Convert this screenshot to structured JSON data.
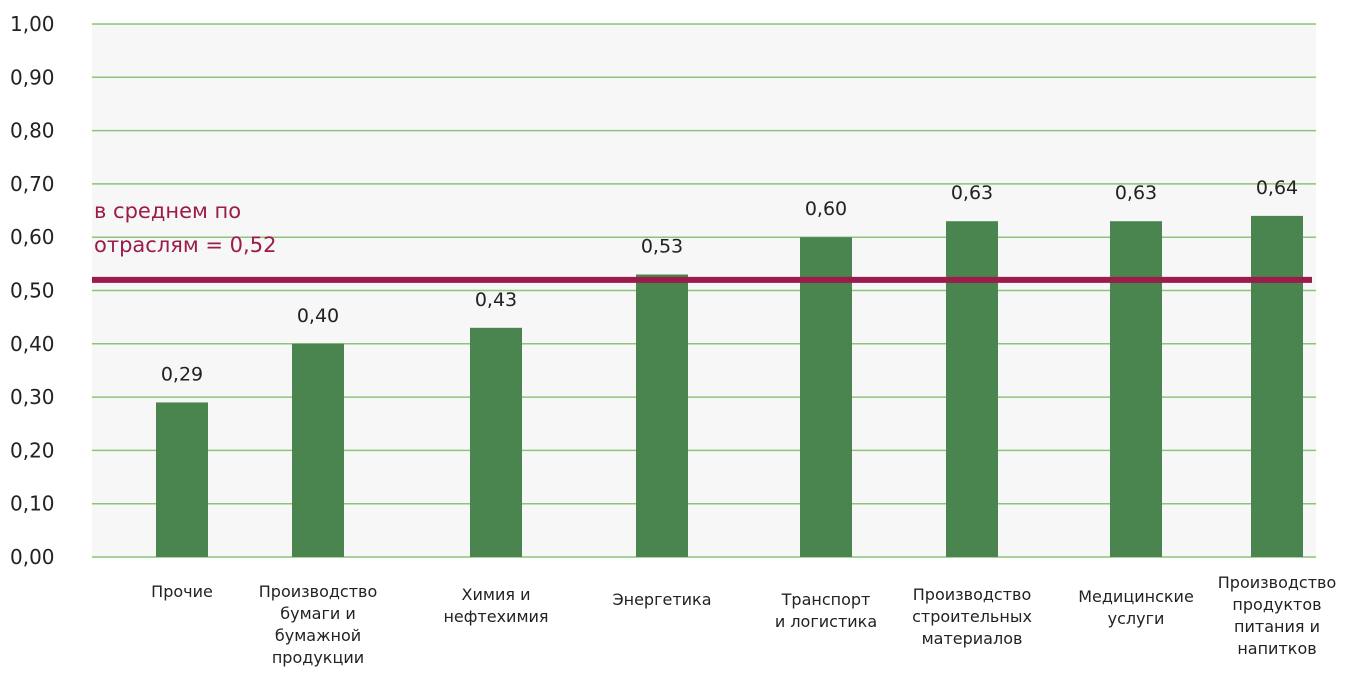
{
  "chart_data": {
    "type": "bar",
    "categories": [
      [
        "Прочие"
      ],
      [
        "Производство",
        "бумаги и",
        "бумажной",
        "продукции"
      ],
      [
        "Химия и",
        "нефтехимия"
      ],
      [
        "Энергетика"
      ],
      [
        "Транспорт",
        "и логистика"
      ],
      [
        "Производство",
        "строительных",
        "материалов"
      ],
      [
        "Медицинские",
        "услуги"
      ],
      [
        "Производство",
        "продуктов",
        "питания и",
        "напитков"
      ]
    ],
    "values": [
      0.29,
      0.4,
      0.43,
      0.53,
      0.6,
      0.63,
      0.63,
      0.64
    ],
    "value_labels": [
      "0,29",
      "0,40",
      "0,43",
      "0,53",
      "0,60",
      "0,63",
      "0,63",
      "0,64"
    ],
    "ylim": [
      0,
      1
    ],
    "y_ticks": [
      0,
      0.1,
      0.2,
      0.3,
      0.4,
      0.5,
      0.6,
      0.7,
      0.8,
      0.9,
      1.0
    ],
    "y_tick_labels": [
      "0,00",
      "0,10",
      "0,20",
      "0,30",
      "0,40",
      "0,50",
      "0,60",
      "0,70",
      "0,80",
      "0,90",
      "1,00"
    ],
    "grid": true,
    "average": {
      "value": 0.52,
      "label_lines": [
        "в среднем по",
        "отраслям = 0,52"
      ]
    },
    "colors": {
      "bar": "#4a8550",
      "grid": "#8cc47a",
      "average_line": "#9b1b4b",
      "plot_background": "#f7f7f7"
    }
  }
}
